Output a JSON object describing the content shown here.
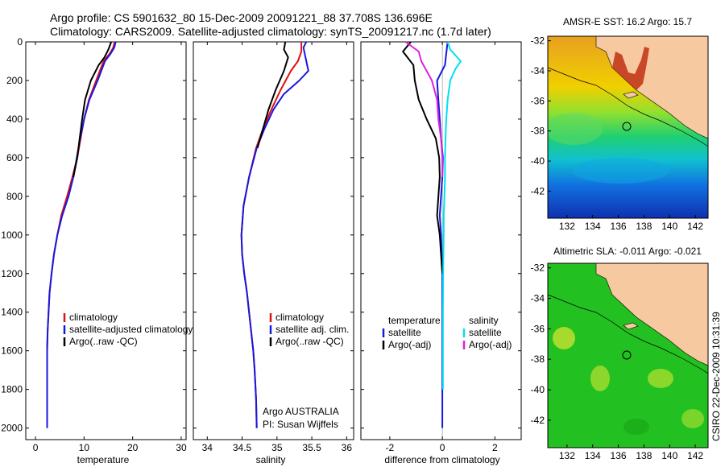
{
  "header": {
    "line1": "Argo profile: CS 5901632_80 15-Dec-2009 20091221_88 37.708S 136.696E",
    "line2": "Climatology: CARS2009. Satellite-adjusted climatology: synTS_20091217.nc (1.7d later)"
  },
  "side_label": "CSIRO 22-Dec-2009 10:31:39",
  "colors": {
    "climatology": "#e01010",
    "satellite": "#1818e0",
    "argo": "#000000",
    "salinity_satellite": "#00e0f0",
    "salinity_argo": "#e020e0",
    "land": "#f7c9a0",
    "ocean_green": "#22c020"
  },
  "chart_data": [
    {
      "type": "line",
      "xlabel": "temperature",
      "ylabel": "",
      "xlim": [
        -2,
        31
      ],
      "ylim": [
        2060,
        0
      ],
      "xticks": [
        "0",
        "10",
        "20",
        "30"
      ],
      "xtick_values": [
        0,
        10,
        20,
        30
      ],
      "yticks": [
        "0",
        "200",
        "400",
        "600",
        "800",
        "1000",
        "1200",
        "1400",
        "1600",
        "1800",
        "2000"
      ],
      "ytick_values": [
        0,
        200,
        400,
        600,
        800,
        1000,
        1200,
        1400,
        1600,
        1800,
        2000
      ],
      "legend": [
        {
          "label": "climatology",
          "color": "#e01010"
        },
        {
          "label": "satellite-adjusted climatology",
          "color": "#1818e0"
        },
        {
          "label": "Argo(..raw -QC)",
          "color": "#000000"
        }
      ],
      "series": [
        {
          "name": "climatology",
          "color": "#e01010",
          "x": [
            16.3,
            16.0,
            15.3,
            14.0,
            12.5,
            11.0,
            10.0,
            9.3,
            8.6,
            7.6,
            6.5,
            5.3,
            4.5,
            3.8,
            3.3,
            2.9,
            2.7,
            2.5,
            2.4,
            2.4,
            2.4
          ],
          "y": [
            0,
            30,
            60,
            100,
            200,
            300,
            400,
            500,
            600,
            700,
            800,
            900,
            1000,
            1100,
            1200,
            1300,
            1400,
            1500,
            1600,
            1800,
            2000
          ]
        },
        {
          "name": "satellite-adjusted climatology",
          "color": "#1818e0",
          "x": [
            16.5,
            16.2,
            15.5,
            14.3,
            12.8,
            11.1,
            10.0,
            9.2,
            8.5,
            7.8,
            6.8,
            5.5,
            4.5,
            3.8,
            3.3,
            2.9,
            2.7,
            2.5,
            2.4,
            2.4,
            2.4
          ],
          "y": [
            0,
            30,
            60,
            100,
            200,
            300,
            400,
            500,
            600,
            700,
            800,
            900,
            1000,
            1100,
            1200,
            1300,
            1400,
            1500,
            1600,
            1800,
            2000
          ]
        },
        {
          "name": "Argo(..raw -QC)",
          "color": "#000000",
          "x": [
            15.6,
            15.0,
            14.2,
            13.0,
            11.4,
            10.2,
            9.6,
            9.1,
            8.6,
            7.8
          ],
          "y": [
            0,
            40,
            80,
            120,
            200,
            300,
            400,
            500,
            600,
            700
          ]
        }
      ]
    },
    {
      "type": "line",
      "xlabel": "salinity",
      "ylabel": "",
      "xlim": [
        33.8,
        36.1
      ],
      "ylim": [
        2060,
        0
      ],
      "xticks": [
        "34",
        "34.5",
        "35",
        "35.5",
        "36"
      ],
      "xtick_values": [
        34,
        34.5,
        35,
        35.5,
        36
      ],
      "legend": [
        {
          "label": "climatology",
          "color": "#e01010"
        },
        {
          "label": "satellite adj. clim.",
          "color": "#1818e0"
        },
        {
          "label": "Argo(..raw -QC)",
          "color": "#000000"
        }
      ],
      "annotations": [
        "Argo AUSTRALIA",
        "PI: Susan Wijffels"
      ],
      "series": [
        {
          "name": "climatology",
          "color": "#e01010",
          "x": [
            35.35,
            35.35,
            35.3,
            35.2,
            35.05,
            34.92,
            34.8,
            34.7,
            34.6,
            34.52,
            34.49,
            34.5,
            34.53,
            34.57,
            34.6,
            34.63,
            34.66,
            34.68,
            34.7,
            34.71
          ],
          "y": [
            0,
            50,
            100,
            150,
            250,
            350,
            450,
            550,
            700,
            850,
            1000,
            1100,
            1200,
            1300,
            1400,
            1500,
            1600,
            1700,
            1850,
            2000
          ]
        },
        {
          "name": "satellite adj. clim.",
          "color": "#1818e0",
          "x": [
            35.42,
            35.38,
            35.45,
            35.32,
            35.1,
            34.95,
            34.82,
            34.71,
            34.6,
            34.52,
            34.49,
            34.5,
            34.53,
            34.57,
            34.6,
            34.63,
            34.66,
            34.68,
            34.7,
            34.71
          ],
          "y": [
            0,
            30,
            150,
            200,
            270,
            350,
            450,
            550,
            700,
            850,
            1000,
            1100,
            1200,
            1300,
            1400,
            1500,
            1600,
            1700,
            1850,
            2000
          ]
        },
        {
          "name": "Argo(..raw -QC)",
          "color": "#000000",
          "x": [
            35.12,
            35.1,
            35.16,
            35.1,
            34.98,
            34.88,
            34.8,
            34.72
          ],
          "y": [
            0,
            40,
            80,
            150,
            250,
            350,
            450,
            550
          ]
        }
      ]
    },
    {
      "type": "line",
      "xlabel": "difference from climatology",
      "ylabel": "",
      "xlim": [
        -3.1,
        3.0
      ],
      "ylim": [
        2060,
        0
      ],
      "xticks": [
        "-2",
        "0",
        "2"
      ],
      "xtick_values": [
        -2,
        0,
        2
      ],
      "legend": [
        {
          "label": "temperature",
          "color": ""
        },
        {
          "label": "satellite",
          "color": "#1818e0"
        },
        {
          "label": "Argo(-adj)",
          "color": "#000000"
        },
        {
          "label": "salinity",
          "color": ""
        },
        {
          "label": "satellite",
          "color": "#00e0f0"
        },
        {
          "label": "Argo(-adj)",
          "color": "#e020e0"
        }
      ],
      "series": [
        {
          "name": "temperature satellite",
          "color": "#1818e0",
          "x": [
            0.2,
            0.15,
            0.1,
            -0.2,
            -0.15,
            -0.1,
            -0.05,
            0.02,
            0.0,
            -0.05,
            -0.1,
            -0.05,
            0.0,
            0.0,
            0.0,
            0.0,
            0.0
          ],
          "y": [
            0,
            60,
            120,
            200,
            300,
            400,
            500,
            600,
            700,
            800,
            900,
            1000,
            1200,
            1400,
            1600,
            1800,
            2000
          ]
        },
        {
          "name": "temperature Argo(-adj)",
          "color": "#000000",
          "x": [
            -1.2,
            -1.5,
            -1.1,
            -1.05,
            -0.9,
            -0.6,
            -0.25,
            -0.12,
            -0.1,
            -0.15,
            -0.2,
            -0.1,
            -0.05,
            0.0
          ],
          "y": [
            0,
            50,
            120,
            200,
            300,
            400,
            500,
            600,
            700,
            800,
            900,
            1000,
            1100,
            1200
          ]
        },
        {
          "name": "salinity satellite",
          "color": "#00e0f0",
          "x": [
            0.2,
            0.3,
            0.7,
            0.5,
            0.3,
            0.2,
            0.15,
            0.12,
            0.1,
            0.1,
            0.08,
            0.05,
            0.05,
            0.03,
            0.02,
            0.02,
            0.02
          ],
          "y": [
            0,
            40,
            100,
            140,
            200,
            300,
            400,
            500,
            600,
            700,
            800,
            900,
            1000,
            1200,
            1400,
            1600,
            1800
          ]
        },
        {
          "name": "salinity Argo(-adj)",
          "color": "#e020e0",
          "x": [
            -1.4,
            -0.9,
            -0.8,
            -0.4,
            -0.2,
            -0.15,
            -0.05,
            0.0,
            0.0
          ],
          "y": [
            0,
            50,
            100,
            200,
            300,
            400,
            500,
            600,
            700
          ]
        }
      ]
    }
  ],
  "maps": [
    {
      "title": "AMSR-E SST: 16.2 Argo: 15.7",
      "xticks": [
        "132",
        "134",
        "136",
        "138",
        "140",
        "142"
      ],
      "yticks": [
        "-32",
        "-34",
        "-36",
        "-38",
        "-40",
        "-42"
      ],
      "lon_range": [
        130.5,
        143
      ],
      "lat_range": [
        -43.8,
        -31.7
      ],
      "marker_lon_lat": [
        136.7,
        -37.7
      ]
    },
    {
      "title": "Altimetric SLA: -0.011 Argo: -0.021",
      "xticks": [
        "132",
        "134",
        "136",
        "138",
        "140",
        "142"
      ],
      "yticks": [
        "-32",
        "-34",
        "-36",
        "-38",
        "-40",
        "-42"
      ],
      "lon_range": [
        130.5,
        143
      ],
      "lat_range": [
        -43.8,
        -31.7
      ],
      "marker_lon_lat": [
        136.7,
        -37.7
      ]
    }
  ]
}
